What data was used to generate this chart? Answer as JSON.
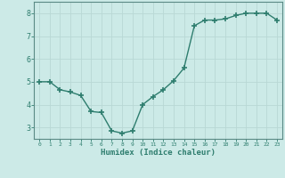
{
  "x": [
    0,
    1,
    2,
    3,
    4,
    5,
    6,
    7,
    8,
    9,
    10,
    11,
    12,
    13,
    14,
    15,
    16,
    17,
    18,
    19,
    20,
    21,
    22,
    23
  ],
  "y": [
    5.0,
    5.0,
    4.65,
    4.55,
    4.4,
    3.7,
    3.65,
    2.85,
    2.75,
    2.85,
    4.0,
    4.35,
    4.65,
    5.05,
    5.6,
    7.45,
    7.7,
    7.7,
    7.75,
    7.9,
    8.0,
    8.0,
    8.0,
    7.7
  ],
  "xlabel": "Humidex (Indice chaleur)",
  "ylim": [
    2.5,
    8.5
  ],
  "xlim": [
    -0.5,
    23.5
  ],
  "line_color": "#2e7d6e",
  "marker": "+",
  "marker_size": 4,
  "marker_lw": 1.2,
  "line_width": 1.0,
  "bg_color": "#cceae7",
  "grid_color": "#b8d8d5",
  "title": "",
  "yticks": [
    3,
    4,
    5,
    6,
    7,
    8
  ],
  "ytick_labels": [
    "3",
    "4",
    "5",
    "6",
    "7",
    "8"
  ],
  "xticks": [
    0,
    1,
    2,
    3,
    4,
    5,
    6,
    7,
    8,
    9,
    10,
    11,
    12,
    13,
    14,
    15,
    16,
    17,
    18,
    19,
    20,
    21,
    22,
    23
  ],
  "xtick_labels": [
    "0",
    "1",
    "2",
    "3",
    "4",
    "5",
    "6",
    "7",
    "8",
    "9",
    "10",
    "11",
    "12",
    "13",
    "14",
    "15",
    "16",
    "17",
    "18",
    "19",
    "20",
    "21",
    "22",
    "23"
  ],
  "tick_color": "#2e7d6e",
  "label_color": "#2e7d6e",
  "spine_color": "#5a8a85"
}
